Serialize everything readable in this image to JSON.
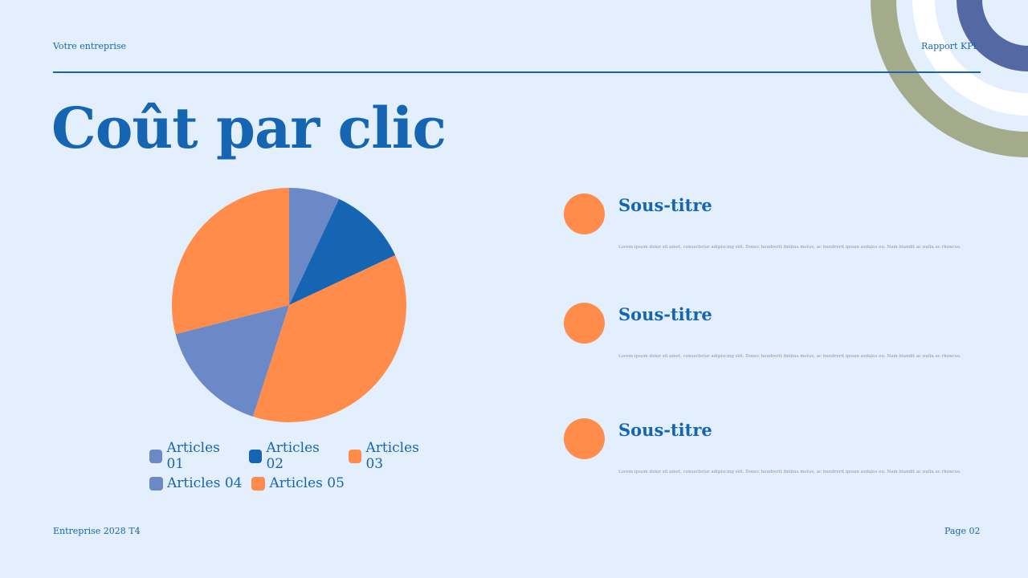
{
  "header": {
    "company": "Votre entreprise",
    "report": "Rapport KPI"
  },
  "title": "Coût par clic",
  "colors": {
    "background": "#e3effd",
    "primary": "#1565b3",
    "orange": "#ff8c4b",
    "periwinkle": "#6b89c6",
    "olive": "#a3ab8a",
    "navy": "#5468a3"
  },
  "chart_data": {
    "type": "pie",
    "title": "",
    "categories": [
      "Articles 01",
      "Articles 02",
      "Articles 03",
      "Articles 04",
      "Articles 05"
    ],
    "values": [
      7,
      11,
      37,
      16,
      29
    ],
    "colors": [
      "#6b89c6",
      "#1565b3",
      "#ff8c4b",
      "#6b89c6",
      "#ff8c4b"
    ],
    "legend_position": "bottom"
  },
  "legend": [
    {
      "label": "Articles 01",
      "color": "#6b89c6"
    },
    {
      "label": "Articles 02",
      "color": "#1565b3"
    },
    {
      "label": "Articles 03",
      "color": "#ff8c4b"
    },
    {
      "label": "Articles 04",
      "color": "#6b89c6"
    },
    {
      "label": "Articles 05",
      "color": "#ff8c4b"
    }
  ],
  "items": [
    {
      "subtitle": "Sous-titre",
      "body": "Lorem ipsum dolor sit amet, consectetur adipiscing elit. Donec hendrerit finibus metus, ac hendrerit ipsum sodales eu. Nam blandit ac nulla ac rhoncus."
    },
    {
      "subtitle": "Sous-titre",
      "body": "Lorem ipsum dolor sit amet, consectetur adipiscing elit. Donec hendrerit finibus metus, ac hendrerit ipsum sodales eu. Nam blandit ac nulla ac rhoncus."
    },
    {
      "subtitle": "Sous-titre",
      "body": "Lorem ipsum dolor sit amet, consectetur adipiscing elit. Donec hendrerit finibus metus, ac hendrerit ipsum sodales eu. Nam blandit ac nulla ac rhoncus."
    }
  ],
  "footer": {
    "left": "Entreprise 2028 T4",
    "right": "Page 02"
  }
}
